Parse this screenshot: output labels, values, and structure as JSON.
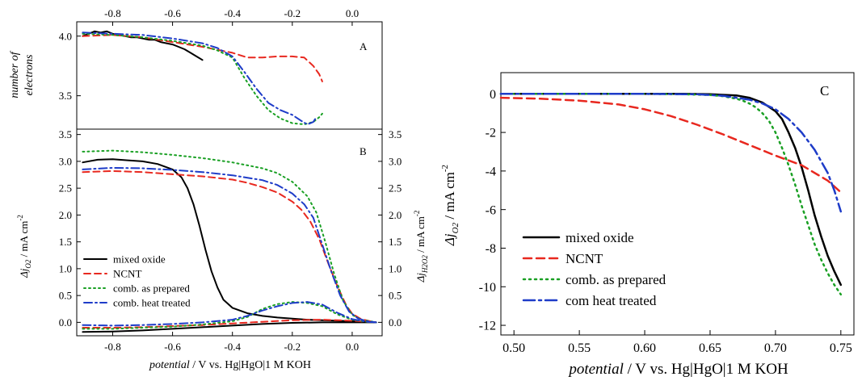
{
  "chart_data": [
    {
      "panel": "A",
      "type": "line",
      "panel_label": "A",
      "ylabel_lines": [
        "number of",
        "electrons"
      ],
      "top_ticks": [
        "-0.8",
        "-0.6",
        "-0.4",
        "-0.2",
        "0.0"
      ],
      "y_ticks": [
        "3.5",
        "4.0"
      ],
      "xlim": [
        -0.92,
        0.1
      ],
      "ylim": [
        3.22,
        4.12
      ],
      "series": [
        {
          "key": "mixed",
          "color": "#000000",
          "dash": "none",
          "x": [
            -0.9,
            -0.88,
            -0.86,
            -0.84,
            -0.82,
            -0.8,
            -0.78,
            -0.76,
            -0.74,
            -0.72,
            -0.7,
            -0.68,
            -0.66,
            -0.64,
            -0.62,
            -0.6,
            -0.58,
            -0.56,
            -0.54,
            -0.52,
            -0.5
          ],
          "y": [
            4.0,
            4.02,
            4.04,
            4.03,
            4.04,
            4.02,
            4.01,
            4.0,
            3.99,
            3.99,
            3.98,
            3.97,
            3.97,
            3.95,
            3.94,
            3.93,
            3.91,
            3.89,
            3.86,
            3.83,
            3.8
          ]
        },
        {
          "key": "ncnt",
          "color": "#e8281f",
          "dash": "8,5",
          "x": [
            -0.9,
            -0.8,
            -0.7,
            -0.6,
            -0.5,
            -0.4,
            -0.35,
            -0.3,
            -0.25,
            -0.2,
            -0.16,
            -0.13,
            -0.11,
            -0.1
          ],
          "y": [
            4.0,
            4.01,
            3.99,
            3.95,
            3.91,
            3.86,
            3.82,
            3.82,
            3.83,
            3.83,
            3.82,
            3.75,
            3.68,
            3.62
          ]
        },
        {
          "key": "prep",
          "color": "#1aa024",
          "dash": "2,4",
          "x": [
            -0.9,
            -0.8,
            -0.7,
            -0.6,
            -0.5,
            -0.45,
            -0.4,
            -0.36,
            -0.32,
            -0.28,
            -0.24,
            -0.2,
            -0.16,
            -0.13,
            -0.11,
            -0.1
          ],
          "y": [
            4.02,
            4.01,
            3.99,
            3.96,
            3.92,
            3.88,
            3.82,
            3.65,
            3.5,
            3.38,
            3.31,
            3.27,
            3.26,
            3.28,
            3.32,
            3.35
          ]
        },
        {
          "key": "heat",
          "color": "#1e3cc8",
          "dash": "10,4,2,4",
          "x": [
            -0.9,
            -0.8,
            -0.7,
            -0.6,
            -0.5,
            -0.45,
            -0.4,
            -0.36,
            -0.32,
            -0.28,
            -0.24,
            -0.2,
            -0.17,
            -0.15,
            -0.13,
            -0.12
          ],
          "y": [
            4.03,
            4.02,
            4.01,
            3.98,
            3.94,
            3.9,
            3.83,
            3.7,
            3.56,
            3.44,
            3.38,
            3.34,
            3.29,
            3.26,
            3.28,
            3.32
          ]
        }
      ]
    },
    {
      "panel": "B",
      "type": "line",
      "panel_label": "B",
      "xlabel_italic": "potential",
      "xlabel_rest": " / V vs. Hg|HgO|1 M KOH",
      "ylabel_left": "Δj",
      "ylabel_left_sub": "O2",
      "ylabel_left_unit": " / mA cm",
      "ylabel_left_sup": "-2",
      "ylabel_right": "Δj",
      "ylabel_right_sub": "H2O2",
      "ylabel_right_unit": " / mA cm",
      "ylabel_right_sup": "-2",
      "x_ticks": [
        "-0.8",
        "-0.6",
        "-0.4",
        "-0.2",
        "0.0"
      ],
      "y_ticks": [
        "0.0",
        "0.5",
        "1.0",
        "1.5",
        "2.0",
        "2.5",
        "3.0",
        "3.5"
      ],
      "xlim": [
        -0.92,
        0.1
      ],
      "ylim": [
        -0.25,
        3.6
      ],
      "legend_position": "lower-left",
      "series": [
        {
          "key": "mixed",
          "name": "mixed oxide",
          "color": "#000000",
          "dash": "none",
          "x": [
            -0.9,
            -0.85,
            -0.8,
            -0.75,
            -0.7,
            -0.65,
            -0.6,
            -0.57,
            -0.55,
            -0.53,
            -0.51,
            -0.49,
            -0.47,
            -0.45,
            -0.43,
            -0.4,
            -0.35,
            -0.3,
            -0.25,
            -0.2,
            -0.15,
            -0.1,
            -0.05,
            0.0,
            0.05,
            0.08
          ],
          "y": [
            2.98,
            3.03,
            3.04,
            3.02,
            3.0,
            2.95,
            2.85,
            2.7,
            2.5,
            2.2,
            1.8,
            1.35,
            0.95,
            0.65,
            0.42,
            0.27,
            0.17,
            0.12,
            0.09,
            0.07,
            0.05,
            0.04,
            0.03,
            0.02,
            0.01,
            0.0
          ]
        },
        {
          "key": "mixed_h2o2",
          "color": "#000000",
          "dash": "none",
          "x": [
            -0.9,
            -0.8,
            -0.7,
            -0.6,
            -0.5,
            -0.4,
            -0.3,
            -0.2,
            -0.1,
            0.0,
            0.08
          ],
          "y": [
            -0.18,
            -0.17,
            -0.15,
            -0.12,
            -0.09,
            -0.06,
            -0.03,
            -0.01,
            0.0,
            0.0,
            0.0
          ]
        },
        {
          "key": "ncnt",
          "name": "NCNT",
          "color": "#e8281f",
          "dash": "8,5",
          "x": [
            -0.9,
            -0.8,
            -0.7,
            -0.6,
            -0.5,
            -0.4,
            -0.35,
            -0.3,
            -0.25,
            -0.2,
            -0.17,
            -0.14,
            -0.11,
            -0.08,
            -0.05,
            -0.02,
            0.0,
            0.03,
            0.06,
            0.08
          ],
          "y": [
            2.8,
            2.82,
            2.8,
            2.76,
            2.72,
            2.66,
            2.6,
            2.52,
            2.42,
            2.25,
            2.1,
            1.88,
            1.55,
            1.1,
            0.68,
            0.32,
            0.16,
            0.06,
            0.02,
            0.0
          ]
        },
        {
          "key": "ncnt_h2o2",
          "color": "#e8281f",
          "dash": "8,5",
          "x": [
            -0.9,
            -0.8,
            -0.7,
            -0.6,
            -0.5,
            -0.4,
            -0.3,
            -0.2,
            -0.1,
            0.0,
            0.08
          ],
          "y": [
            -0.1,
            -0.1,
            -0.09,
            -0.07,
            -0.05,
            -0.02,
            0.01,
            0.04,
            0.05,
            0.03,
            0.0
          ]
        },
        {
          "key": "prep",
          "name": "comb. as prepared",
          "color": "#1aa024",
          "dash": "2,4",
          "x": [
            -0.9,
            -0.8,
            -0.7,
            -0.6,
            -0.5,
            -0.4,
            -0.3,
            -0.25,
            -0.2,
            -0.15,
            -0.12,
            -0.09,
            -0.06,
            -0.03,
            0.0,
            0.03,
            0.06,
            0.08
          ],
          "y": [
            3.18,
            3.2,
            3.17,
            3.12,
            3.06,
            2.98,
            2.87,
            2.78,
            2.62,
            2.35,
            2.05,
            1.5,
            0.9,
            0.4,
            0.14,
            0.05,
            0.02,
            0.0
          ]
        },
        {
          "key": "prep_h2o2",
          "color": "#1aa024",
          "dash": "2,4",
          "x": [
            -0.9,
            -0.8,
            -0.7,
            -0.6,
            -0.5,
            -0.4,
            -0.35,
            -0.3,
            -0.25,
            -0.2,
            -0.15,
            -0.1,
            -0.05,
            0.0,
            0.05,
            0.08
          ],
          "y": [
            -0.12,
            -0.12,
            -0.1,
            -0.08,
            -0.04,
            0.02,
            0.1,
            0.25,
            0.34,
            0.38,
            0.36,
            0.3,
            0.15,
            0.05,
            0.01,
            0.0
          ]
        },
        {
          "key": "heat",
          "name": "comb. heat treated",
          "color": "#1e3cc8",
          "dash": "10,4,2,4",
          "x": [
            -0.9,
            -0.8,
            -0.7,
            -0.6,
            -0.5,
            -0.4,
            -0.3,
            -0.25,
            -0.2,
            -0.16,
            -0.13,
            -0.1,
            -0.07,
            -0.04,
            -0.01,
            0.02,
            0.05,
            0.08
          ],
          "y": [
            2.85,
            2.88,
            2.87,
            2.84,
            2.8,
            2.74,
            2.65,
            2.56,
            2.4,
            2.2,
            1.95,
            1.45,
            0.95,
            0.5,
            0.2,
            0.07,
            0.02,
            0.0
          ]
        },
        {
          "key": "heat_h2o2",
          "color": "#1e3cc8",
          "dash": "10,4,2,4",
          "x": [
            -0.9,
            -0.8,
            -0.7,
            -0.6,
            -0.5,
            -0.4,
            -0.35,
            -0.3,
            -0.25,
            -0.2,
            -0.15,
            -0.1,
            -0.05,
            0.0,
            0.05,
            0.08
          ],
          "y": [
            -0.05,
            -0.06,
            -0.05,
            -0.03,
            0.0,
            0.05,
            0.12,
            0.22,
            0.3,
            0.36,
            0.38,
            0.33,
            0.18,
            0.06,
            0.01,
            0.0
          ]
        }
      ]
    },
    {
      "panel": "C",
      "type": "line",
      "panel_label": "C",
      "xlabel_italic": "potential",
      "xlabel_rest": " / V vs. Hg|HgO|1 M KOH",
      "ylabel": "Δj",
      "ylabel_sub": "O2",
      "ylabel_unit": " / mA cm",
      "ylabel_sup": "-2",
      "x_ticks": [
        "0.50",
        "0.55",
        "0.60",
        "0.65",
        "0.70",
        "0.75"
      ],
      "y_ticks": [
        "0",
        "-2",
        "-4",
        "-6",
        "-8",
        "-10",
        "-12"
      ],
      "xlim": [
        0.49,
        0.76
      ],
      "ylim": [
        -12.5,
        1.1
      ],
      "legend_position": "lower-left",
      "series": [
        {
          "key": "mixed",
          "name": "mixed oxide",
          "color": "#000000",
          "dash": "none",
          "x": [
            0.49,
            0.55,
            0.6,
            0.63,
            0.65,
            0.67,
            0.68,
            0.69,
            0.7,
            0.705,
            0.71,
            0.715,
            0.72,
            0.725,
            0.73,
            0.735,
            0.74,
            0.745,
            0.75
          ],
          "y": [
            0.0,
            0.0,
            0.0,
            0.0,
            -0.02,
            -0.08,
            -0.2,
            -0.45,
            -0.9,
            -1.3,
            -2.0,
            -2.8,
            -3.8,
            -5.0,
            -6.3,
            -7.4,
            -8.4,
            -9.2,
            -9.9
          ]
        },
        {
          "key": "ncnt",
          "name": "NCNT",
          "color": "#e8281f",
          "dash": "10,6",
          "x": [
            0.49,
            0.52,
            0.55,
            0.58,
            0.6,
            0.62,
            0.64,
            0.66,
            0.68,
            0.7,
            0.72,
            0.74,
            0.75
          ],
          "y": [
            -0.2,
            -0.25,
            -0.35,
            -0.55,
            -0.8,
            -1.15,
            -1.6,
            -2.1,
            -2.65,
            -3.2,
            -3.7,
            -4.5,
            -5.1
          ]
        },
        {
          "key": "prep",
          "name": "comb. as prepared",
          "color": "#1aa024",
          "dash": "2,5",
          "x": [
            0.49,
            0.55,
            0.6,
            0.63,
            0.65,
            0.66,
            0.67,
            0.675,
            0.68,
            0.685,
            0.69,
            0.695,
            0.7,
            0.705,
            0.71,
            0.715,
            0.72,
            0.725,
            0.73,
            0.735,
            0.74,
            0.745,
            0.75
          ],
          "y": [
            0.0,
            0.0,
            0.0,
            -0.02,
            -0.06,
            -0.12,
            -0.25,
            -0.35,
            -0.5,
            -0.7,
            -1.0,
            -1.4,
            -2.0,
            -2.8,
            -3.7,
            -4.7,
            -5.8,
            -6.8,
            -7.8,
            -8.6,
            -9.3,
            -9.9,
            -10.4
          ]
        },
        {
          "key": "heat",
          "name": "com heat treated",
          "color": "#1e3cc8",
          "dash": "14,5,3,5",
          "x": [
            0.49,
            0.55,
            0.6,
            0.64,
            0.66,
            0.68,
            0.69,
            0.7,
            0.71,
            0.72,
            0.73,
            0.74,
            0.745,
            0.75
          ],
          "y": [
            0.0,
            0.0,
            0.0,
            -0.02,
            -0.1,
            -0.3,
            -0.5,
            -0.8,
            -1.3,
            -2.0,
            -2.9,
            -4.1,
            -5.0,
            -6.1
          ]
        }
      ]
    }
  ]
}
